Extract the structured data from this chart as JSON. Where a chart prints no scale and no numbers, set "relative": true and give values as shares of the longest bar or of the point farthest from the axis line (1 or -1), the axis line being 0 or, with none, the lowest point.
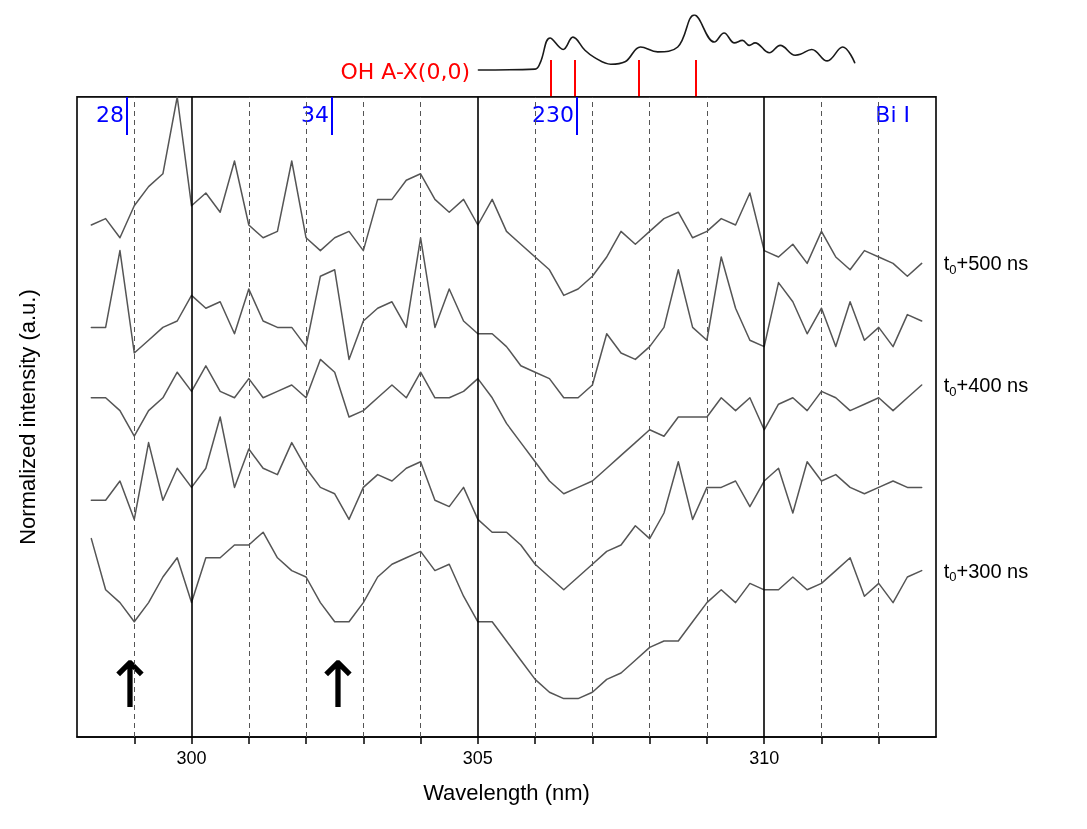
{
  "chart_data": [
    {
      "type": "line",
      "relative": true,
      "marker": "none",
      "tick_labels": false,
      "legend": false,
      "xlim": [
        298,
        313
      ],
      "x": [
        305.01,
        306.0,
        306.09,
        306.26,
        306.49,
        306.66,
        306.87,
        307.04,
        307.32,
        307.57,
        307.84,
        308.14,
        308.49,
        308.78,
        309.13,
        309.3,
        309.48,
        309.62,
        309.74,
        309.84,
        310.09,
        310.28,
        310.54,
        310.63,
        310.83,
        311.1,
        311.37,
        311.58
      ],
      "series": [
        {
          "color": "#1a1a1a",
          "values": [
            0.33,
            0.34,
            0.42,
            0.72,
            0.58,
            0.73,
            0.57,
            0.48,
            0.4,
            0.43,
            0.61,
            0.55,
            0.61,
            1.0,
            0.67,
            0.78,
            0.66,
            0.69,
            0.63,
            0.66,
            0.54,
            0.63,
            0.51,
            0.52,
            0.58,
            0.44,
            0.61,
            0.42
          ]
        }
      ],
      "annotations": [
        "OH A-X(0,0)"
      ],
      "ref_lines": [
        {
          "axis": "x",
          "value": 306.28,
          "color": "#ff0000"
        },
        {
          "axis": "x",
          "value": 306.7,
          "color": "#ff0000"
        },
        {
          "axis": "x",
          "value": 307.81,
          "color": "#ff0000"
        },
        {
          "axis": "x",
          "value": 308.8,
          "color": "#ff0000"
        }
      ]
    },
    {
      "type": "line",
      "relative": true,
      "marker": "none",
      "tick_labels": "x",
      "legend": false,
      "grid": "x",
      "xlabel": "Wavelength (nm)",
      "ylabel": "Normalized intensity (a.u.)",
      "xlim": [
        298,
        313
      ],
      "xticks": [
        {
          "value": 299,
          "label": null
        },
        300,
        {
          "value": 301,
          "label": null
        },
        {
          "value": 302,
          "label": null
        },
        {
          "value": 303,
          "label": null
        },
        {
          "value": 304,
          "label": null
        },
        305,
        {
          "value": 306,
          "label": null
        },
        {
          "value": 307,
          "label": null
        },
        {
          "value": 308,
          "label": null
        },
        {
          "value": 309,
          "label": null
        },
        310,
        {
          "value": 311,
          "label": null
        },
        {
          "value": 312,
          "label": null
        }
      ],
      "x": [
        298.25,
        298.5,
        298.75,
        299.0,
        299.25,
        299.5,
        299.75,
        300.0,
        300.25,
        300.5,
        300.75,
        301.0,
        301.25,
        301.5,
        301.75,
        302.0,
        302.25,
        302.5,
        302.75,
        303.0,
        303.25,
        303.5,
        303.75,
        304.0,
        304.25,
        304.5,
        304.75,
        305.0,
        305.25,
        305.5,
        305.75,
        306.0,
        306.25,
        306.5,
        306.75,
        307.0,
        307.25,
        307.5,
        307.75,
        308.0,
        308.25,
        308.5,
        308.75,
        309.0,
        309.25,
        309.5,
        309.75,
        310.0,
        310.25,
        310.5,
        310.75,
        311.0,
        311.25,
        311.5,
        311.75,
        312.0,
        312.25,
        312.5,
        312.75
      ],
      "series": [
        {
          "name": "t$_{0}$+500 ns",
          "color": "#555555",
          "values": [
            0.8,
            0.81,
            0.78,
            0.83,
            0.86,
            0.88,
            1.0,
            0.83,
            0.85,
            0.82,
            0.9,
            0.8,
            0.78,
            0.79,
            0.9,
            0.78,
            0.76,
            0.78,
            0.79,
            0.76,
            0.84,
            0.84,
            0.87,
            0.88,
            0.84,
            0.82,
            0.84,
            0.8,
            0.84,
            0.79,
            0.77,
            0.75,
            0.73,
            0.69,
            0.7,
            0.72,
            0.75,
            0.79,
            0.77,
            0.79,
            0.81,
            0.82,
            0.78,
            0.79,
            0.81,
            0.8,
            0.85,
            0.76,
            0.75,
            0.77,
            0.74,
            0.79,
            0.75,
            0.73,
            0.76,
            0.75,
            0.74,
            0.72,
            0.74
          ]
        },
        {
          "color": "#555555",
          "values": [
            0.64,
            0.64,
            0.76,
            0.6,
            0.62,
            0.64,
            0.65,
            0.69,
            0.67,
            0.68,
            0.63,
            0.7,
            0.65,
            0.64,
            0.64,
            0.61,
            0.72,
            0.73,
            0.59,
            0.65,
            0.67,
            0.68,
            0.64,
            0.78,
            0.64,
            0.7,
            0.65,
            0.63,
            0.63,
            0.61,
            0.58,
            0.57,
            0.56,
            0.53,
            0.53,
            0.55,
            0.63,
            0.6,
            0.59,
            0.61,
            0.64,
            0.73,
            0.64,
            0.62,
            0.75,
            0.67,
            0.62,
            0.61,
            0.71,
            0.68,
            0.63,
            0.67,
            0.61,
            0.68,
            0.62,
            0.64,
            0.61,
            0.66,
            0.65
          ]
        },
        {
          "name": "t$_{0}$+400 ns",
          "color": "#555555",
          "values": [
            0.53,
            0.53,
            0.51,
            0.47,
            0.51,
            0.53,
            0.57,
            0.54,
            0.58,
            0.54,
            0.53,
            0.56,
            0.53,
            0.54,
            0.55,
            0.53,
            0.59,
            0.57,
            0.5,
            0.51,
            0.53,
            0.55,
            0.53,
            0.57,
            0.53,
            0.53,
            0.54,
            0.56,
            0.53,
            0.49,
            0.46,
            0.43,
            0.4,
            0.38,
            0.39,
            0.4,
            0.42,
            0.44,
            0.46,
            0.48,
            0.47,
            0.5,
            0.5,
            0.5,
            0.53,
            0.51,
            0.53,
            0.48,
            0.52,
            0.53,
            0.51,
            0.54,
            0.53,
            0.51,
            0.52,
            0.53,
            0.51,
            0.53,
            0.55
          ]
        },
        {
          "color": "#555555",
          "values": [
            0.37,
            0.37,
            0.4,
            0.34,
            0.46,
            0.37,
            0.42,
            0.39,
            0.42,
            0.5,
            0.39,
            0.45,
            0.42,
            0.41,
            0.46,
            0.42,
            0.39,
            0.38,
            0.34,
            0.39,
            0.41,
            0.4,
            0.42,
            0.43,
            0.37,
            0.36,
            0.39,
            0.34,
            0.32,
            0.32,
            0.3,
            0.27,
            0.25,
            0.23,
            0.25,
            0.27,
            0.29,
            0.3,
            0.33,
            0.31,
            0.35,
            0.43,
            0.34,
            0.39,
            0.39,
            0.4,
            0.36,
            0.4,
            0.42,
            0.35,
            0.43,
            0.4,
            0.41,
            0.39,
            0.38,
            0.39,
            0.4,
            0.39,
            0.39
          ]
        },
        {
          "name": "t$_{0}$+300 ns",
          "color": "#555555",
          "values": [
            0.31,
            0.23,
            0.21,
            0.18,
            0.21,
            0.25,
            0.28,
            0.21,
            0.28,
            0.28,
            0.3,
            0.3,
            0.32,
            0.28,
            0.26,
            0.25,
            0.21,
            0.18,
            0.18,
            0.21,
            0.25,
            0.27,
            0.28,
            0.29,
            0.26,
            0.27,
            0.22,
            0.18,
            0.18,
            0.15,
            0.12,
            0.09,
            0.07,
            0.06,
            0.06,
            0.07,
            0.09,
            0.1,
            0.12,
            0.14,
            0.15,
            0.15,
            0.18,
            0.21,
            0.23,
            0.21,
            0.24,
            0.23,
            0.23,
            0.25,
            0.23,
            0.24,
            0.26,
            0.28,
            0.22,
            0.24,
            0.21,
            0.25,
            0.26
          ]
        }
      ],
      "annotations": [
        "Bi I",
        "↑",
        "↑",
        "28",
        "34",
        "230"
      ]
    }
  ]
}
